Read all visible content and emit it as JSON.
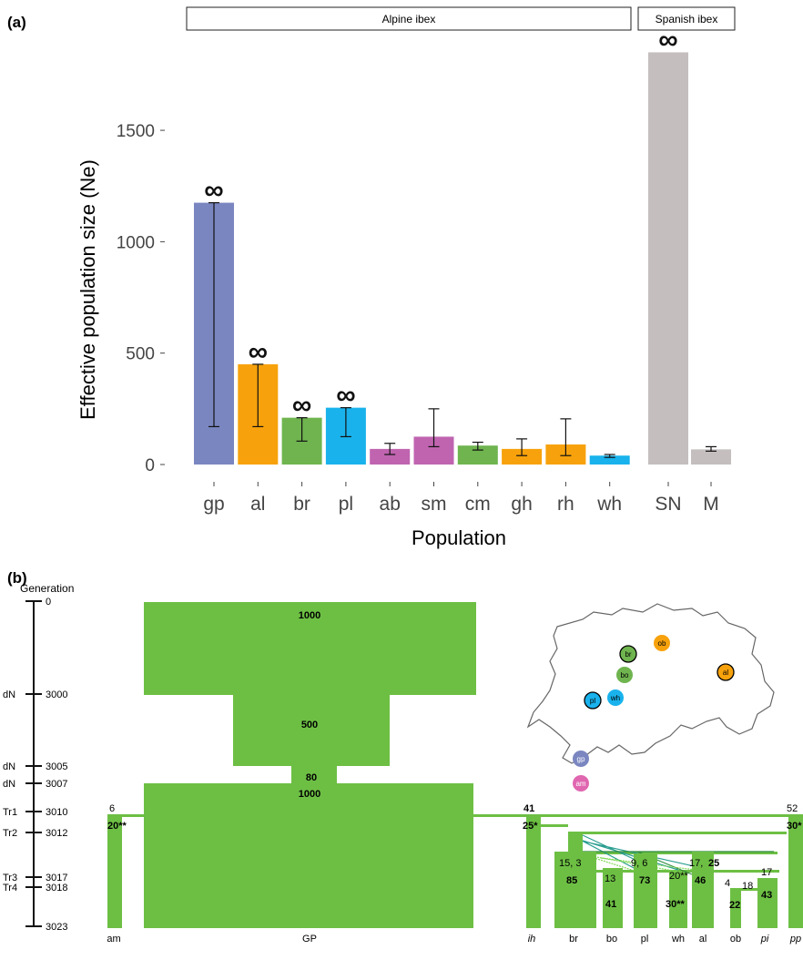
{
  "panel_a": {
    "label": "(a)",
    "facets": [
      "Alpine ibex",
      "Spanish ibex"
    ],
    "infinity_symbol": "∞"
  },
  "panel_b": {
    "label": "(b)",
    "timeline_title": "Generation",
    "timeline": [
      {
        "label": "",
        "generation": 0
      },
      {
        "label": "dN",
        "generation": 3000
      },
      {
        "label": "dN",
        "generation": 3005
      },
      {
        "label": "dN",
        "generation": 3007
      },
      {
        "label": "Tr1",
        "generation": 3010
      },
      {
        "label": "Tr2",
        "generation": 3012
      },
      {
        "label": "Tr3",
        "generation": 3017
      },
      {
        "label": "Tr4",
        "generation": 3018
      },
      {
        "label": "",
        "generation": 3023
      }
    ],
    "gp_sizes": [
      "1000",
      "500",
      "80",
      "1000"
    ],
    "population_labels": [
      "am",
      "GP",
      "ih",
      "br",
      "bo",
      "pl",
      "wh",
      "al",
      "ob",
      "pi",
      "pp"
    ],
    "numbers": {
      "am_top": "6",
      "am_size": "20**",
      "ih_top": "41",
      "ih_size": "25*",
      "pp_top": "52",
      "pp_size": "30*",
      "br_founders": "15, 3",
      "br_size": "85",
      "bo_founders": "13",
      "bo_size": "41",
      "pl_founders": "9, 6",
      "pl_size": "73",
      "wh_founders": "20**",
      "wh_size": "30**",
      "al_founders_a": "17, ",
      "al_founders_b": "25",
      "al_size": "46",
      "ob_founders": "4",
      "ob_size": "22",
      "pi_founders_a": "18",
      "pi_founders_b": "17",
      "pi_size": "43"
    },
    "map_labels": [
      "br",
      "ob",
      "bo",
      "pl",
      "wh",
      "al",
      "gp",
      "am"
    ]
  },
  "colors": {
    "green": "#6dbf44",
    "dark_green": "#2e8a3e",
    "teal": "#2a9d8f"
  },
  "chart_data": {
    "type": "bar",
    "title": "",
    "xlabel": "Population",
    "ylabel": "Effective population size (Ne)",
    "ylim": [
      0,
      1950
    ],
    "yticks": [
      0,
      500,
      1000,
      1500
    ],
    "facets": [
      {
        "name": "Alpine ibex",
        "categories": [
          "gp",
          "al",
          "br",
          "pl",
          "ab",
          "sm",
          "cm",
          "gh",
          "rh",
          "wh"
        ],
        "values": [
          1175,
          450,
          210,
          255,
          70,
          125,
          85,
          70,
          90,
          40
        ],
        "ci_low": [
          170,
          170,
          105,
          125,
          45,
          80,
          65,
          40,
          40,
          32
        ],
        "ci_high": [
          1175,
          450,
          210,
          255,
          95,
          250,
          100,
          115,
          205,
          45
        ],
        "upper_infinite": [
          true,
          true,
          true,
          true,
          false,
          false,
          false,
          false,
          false,
          false
        ],
        "colors": [
          "#7a86c0",
          "#f7a20c",
          "#6fb44f",
          "#19b2ec",
          "#c064b0",
          "#c064b0",
          "#6fb44f",
          "#f7a20c",
          "#f7a20c",
          "#19b2ec"
        ]
      },
      {
        "name": "Spanish ibex",
        "categories": [
          "SN",
          "M"
        ],
        "values": [
          1850,
          68
        ],
        "ci_low": [
          1850,
          60
        ],
        "ci_high": [
          1850,
          80
        ],
        "upper_infinite": [
          true,
          false
        ],
        "colors": [
          "#c4bfbe",
          "#c4bfbe"
        ]
      }
    ],
    "grid": false,
    "legend": "none"
  }
}
